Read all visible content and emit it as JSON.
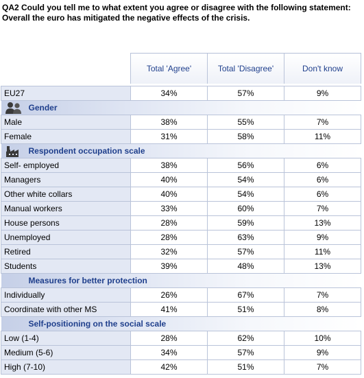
{
  "question": {
    "line1": "QA2  Could you tell me to what extent you agree or disagree with the following statement:",
    "line2": "Overall the euro has mitigated the negative effects of the crisis."
  },
  "columns": [
    "Total 'Agree'",
    "Total 'Disagree'",
    "Don't know"
  ],
  "total_row": {
    "label": "EU27",
    "values": [
      "34%",
      "57%",
      "9%"
    ]
  },
  "sections": [
    {
      "title": "Gender",
      "icon": "people-icon",
      "rows": [
        {
          "label": "Male",
          "values": [
            "38%",
            "55%",
            "7%"
          ]
        },
        {
          "label": "Female",
          "values": [
            "31%",
            "58%",
            "11%"
          ]
        }
      ]
    },
    {
      "title": "Respondent occupation scale",
      "icon": "factory-icon",
      "rows": [
        {
          "label": "Self- employed",
          "values": [
            "38%",
            "56%",
            "6%"
          ]
        },
        {
          "label": "Managers",
          "values": [
            "40%",
            "54%",
            "6%"
          ]
        },
        {
          "label": "Other white collars",
          "values": [
            "40%",
            "54%",
            "6%"
          ]
        },
        {
          "label": "Manual workers",
          "values": [
            "33%",
            "60%",
            "7%"
          ]
        },
        {
          "label": "House persons",
          "values": [
            "28%",
            "59%",
            "13%"
          ]
        },
        {
          "label": "Unemployed",
          "values": [
            "28%",
            "63%",
            "9%"
          ]
        },
        {
          "label": "Retired",
          "values": [
            "32%",
            "57%",
            "11%"
          ]
        },
        {
          "label": "Students",
          "values": [
            "39%",
            "48%",
            "13%"
          ]
        }
      ]
    },
    {
      "title": "Measures for better protection",
      "icon": "",
      "rows": [
        {
          "label": "Individually",
          "values": [
            "26%",
            "67%",
            "7%"
          ]
        },
        {
          "label": "Coordinate with other MS",
          "values": [
            "41%",
            "51%",
            "8%"
          ]
        }
      ]
    },
    {
      "title": "Self-positioning on the social scale",
      "icon": "",
      "rows": [
        {
          "label": "Low (1-4)",
          "values": [
            "28%",
            "62%",
            "10%"
          ]
        },
        {
          "label": "Medium (5-6)",
          "values": [
            "34%",
            "57%",
            "9%"
          ]
        },
        {
          "label": "High (7-10)",
          "values": [
            "42%",
            "51%",
            "7%"
          ]
        }
      ]
    }
  ]
}
